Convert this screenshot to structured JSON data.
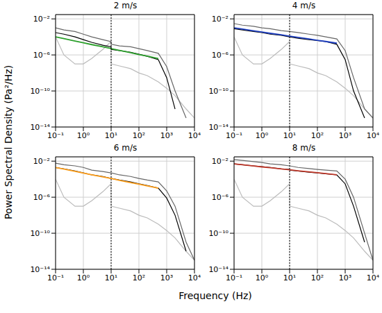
{
  "chart_data": [
    {
      "type": "line",
      "title": "2 m/s",
      "log": true,
      "grid": true,
      "vline": 10,
      "xlim": [
        0.1,
        10000
      ],
      "ylim": [
        1e-14,
        0.03
      ],
      "xticks": [
        {
          "value": 0.1,
          "label": "10⁻¹"
        },
        {
          "value": 1,
          "label": "10⁰"
        },
        {
          "value": 10,
          "label": "10¹"
        },
        {
          "value": 100,
          "label": "10²"
        },
        {
          "value": 1000,
          "label": "10³"
        },
        {
          "value": 10000,
          "label": "10⁴"
        }
      ],
      "yticks": [
        {
          "value": 1e-14,
          "label": "10⁻¹⁴"
        },
        {
          "value": 1e-10,
          "label": "10⁻¹⁰"
        },
        {
          "value": 1e-06,
          "label": "10⁻⁶"
        },
        {
          "value": 0.01,
          "label": "10⁻²"
        }
      ],
      "x": [
        0.1,
        0.2,
        0.5,
        1,
        2,
        5,
        9.9,
        10.1,
        20,
        50,
        100,
        200,
        500,
        1000,
        2000,
        5000,
        10000
      ],
      "series": [
        {
          "color": "#bbbbbb",
          "values": [
            0.0001,
            1e-06,
            1e-07,
            1e-07,
            4e-07,
            4e-06,
            3e-05,
            1e-07,
            6e-08,
            3e-08,
            1e-08,
            5e-09,
            1e-09,
            2e-10,
            3e-11,
            1e-12,
            1e-13
          ]
        },
        {
          "color": "#666666",
          "values": [
            0.001,
            0.0006,
            0.0004,
            0.0002,
            0.0001,
            5e-05,
            3e-05,
            1.5e-05,
            1e-05,
            8e-06,
            5e-06,
            3e-06,
            1.5e-06,
            5e-08,
            1e-10,
            1e-13,
            null
          ]
        },
        {
          "color": "#000000",
          "values": [
            0.0003,
            0.0002,
            0.0001,
            5e-05,
            2.5e-05,
            1.2e-05,
            8e-06,
            4e-06,
            3e-06,
            2e-06,
            1.2e-06,
            7e-07,
            3e-07,
            3e-09,
            1e-12,
            null,
            null
          ]
        },
        {
          "color": "#2ca02c",
          "values": [
            0.0001,
            6.4e-05,
            3.5e-05,
            2.2e-05,
            1.4e-05,
            7.9e-06,
            5.1e-06,
            5e-06,
            3.2e-06,
            1.8e-06,
            1.1e-06,
            7.2e-07,
            4e-07,
            null,
            null,
            null,
            null
          ]
        }
      ]
    },
    {
      "type": "line",
      "title": "4 m/s",
      "log": true,
      "grid": true,
      "vline": 10,
      "xlim": [
        0.1,
        10000
      ],
      "ylim": [
        1e-14,
        0.03
      ],
      "xticks": [
        {
          "value": 0.1,
          "label": "10⁻¹"
        },
        {
          "value": 1,
          "label": "10⁰"
        },
        {
          "value": 10,
          "label": "10¹"
        },
        {
          "value": 100,
          "label": "10²"
        },
        {
          "value": 1000,
          "label": "10³"
        },
        {
          "value": 10000,
          "label": "10⁴"
        }
      ],
      "yticks": [
        {
          "value": 1e-14,
          "label": "10⁻¹⁴"
        },
        {
          "value": 1e-10,
          "label": "10⁻¹⁰"
        },
        {
          "value": 1e-06,
          "label": "10⁻⁶"
        },
        {
          "value": 0.01,
          "label": "10⁻²"
        }
      ],
      "x": [
        0.1,
        0.2,
        0.5,
        1,
        2,
        5,
        9.9,
        10.1,
        20,
        50,
        100,
        200,
        500,
        1000,
        2000,
        5000,
        10000
      ],
      "series": [
        {
          "color": "#bbbbbb",
          "values": [
            0.0001,
            1e-06,
            1e-07,
            1e-07,
            4e-07,
            4e-06,
            3e-05,
            1e-07,
            6e-08,
            3e-08,
            1e-08,
            5e-09,
            1e-09,
            2e-10,
            3e-11,
            1e-12,
            1e-13
          ]
        },
        {
          "color": "#666666",
          "values": [
            0.003,
            0.002,
            0.0015,
            0.001,
            0.0008,
            0.0005,
            0.0004,
            0.0004,
            0.0003,
            0.0002,
            0.00015,
            0.0001,
            6e-05,
            3e-06,
            3e-09,
            1e-12,
            1e-13
          ]
        },
        {
          "color": "#000000",
          "values": [
            0.0008,
            0.0006,
            0.0004,
            0.0003,
            0.0002,
            0.00015,
            0.0001,
            0.0001,
            7e-05,
            5e-05,
            4e-05,
            3e-05,
            1.5e-05,
            3e-07,
            1e-10,
            1e-13,
            null
          ]
        },
        {
          "color": "#1f3fbf",
          "values": [
            0.001,
            0.00073,
            0.00048,
            0.00035,
            0.00025,
            0.00017,
            0.00012,
            0.00012,
            8.8e-05,
            5.8e-05,
            4.2e-05,
            3.1e-05,
            2e-05,
            null,
            null,
            null,
            null
          ]
        }
      ]
    },
    {
      "type": "line",
      "title": "6 m/s",
      "log": true,
      "grid": true,
      "vline": 10,
      "xlim": [
        0.1,
        10000
      ],
      "ylim": [
        1e-14,
        0.03
      ],
      "xticks": [
        {
          "value": 0.1,
          "label": "10⁻¹"
        },
        {
          "value": 1,
          "label": "10⁰"
        },
        {
          "value": 10,
          "label": "10¹"
        },
        {
          "value": 100,
          "label": "10²"
        },
        {
          "value": 1000,
          "label": "10³"
        },
        {
          "value": 10000,
          "label": "10⁴"
        }
      ],
      "yticks": [
        {
          "value": 1e-14,
          "label": "10⁻¹⁴"
        },
        {
          "value": 1e-10,
          "label": "10⁻¹⁰"
        },
        {
          "value": 1e-06,
          "label": "10⁻⁶"
        },
        {
          "value": 0.01,
          "label": "10⁻²"
        }
      ],
      "x": [
        0.1,
        0.2,
        0.5,
        1,
        2,
        5,
        9.9,
        10.1,
        20,
        50,
        100,
        200,
        500,
        1000,
        2000,
        5000,
        10000
      ],
      "series": [
        {
          "color": "#bbbbbb",
          "values": [
            0.0001,
            1e-06,
            1e-07,
            1e-07,
            4e-07,
            4e-06,
            3e-05,
            1e-07,
            6e-08,
            3e-08,
            1e-08,
            5e-09,
            1e-09,
            2e-10,
            3e-11,
            1e-12,
            1e-13
          ]
        },
        {
          "color": "#666666",
          "values": [
            0.006,
            0.004,
            0.003,
            0.002,
            0.001,
            0.0007,
            0.0005,
            0.0005,
            0.0003,
            0.0002,
            0.00012,
            8e-05,
            5e-05,
            5e-06,
            1e-07,
            1e-11,
            1e-13
          ]
        },
        {
          "color": "#000000",
          "values": [
            0.002,
            0.0014,
            0.0008,
            0.0005,
            0.0003,
            0.0002,
            0.00012,
            0.00012,
            8e-05,
            5e-05,
            3e-05,
            2e-05,
            1e-05,
            8e-07,
            1e-08,
            1e-12,
            null
          ]
        },
        {
          "color": "#ff9f1c",
          "values": [
            0.002,
            0.0013,
            0.00073,
            0.00048,
            0.00031,
            0.00018,
            0.00012,
            0.00012,
            7.5e-05,
            4.2e-05,
            2.8e-05,
            1.8e-05,
            1e-05,
            null,
            null,
            null,
            null
          ]
        }
      ]
    },
    {
      "type": "line",
      "title": "8 m/s",
      "log": true,
      "grid": true,
      "vline": 10,
      "xlim": [
        0.1,
        10000
      ],
      "ylim": [
        1e-14,
        0.03
      ],
      "xticks": [
        {
          "value": 0.1,
          "label": "10⁻¹"
        },
        {
          "value": 1,
          "label": "10⁰"
        },
        {
          "value": 10,
          "label": "10¹"
        },
        {
          "value": 100,
          "label": "10²"
        },
        {
          "value": 1000,
          "label": "10³"
        },
        {
          "value": 10000,
          "label": "10⁴"
        }
      ],
      "yticks": [
        {
          "value": 1e-14,
          "label": "10⁻¹⁴"
        },
        {
          "value": 1e-10,
          "label": "10⁻¹⁰"
        },
        {
          "value": 1e-06,
          "label": "10⁻⁶"
        },
        {
          "value": 0.01,
          "label": "10⁻²"
        }
      ],
      "x": [
        0.1,
        0.2,
        0.5,
        1,
        2,
        5,
        9.9,
        10.1,
        20,
        50,
        100,
        200,
        500,
        1000,
        2000,
        5000,
        10000
      ],
      "series": [
        {
          "color": "#bbbbbb",
          "values": [
            0.0001,
            1e-06,
            1e-07,
            1e-07,
            4e-07,
            4e-06,
            3e-05,
            1e-07,
            6e-08,
            3e-08,
            1e-08,
            5e-09,
            1e-09,
            2e-10,
            3e-11,
            1e-12,
            1e-13
          ]
        },
        {
          "color": "#666666",
          "values": [
            0.015,
            0.012,
            0.009,
            0.007,
            0.005,
            0.004,
            0.003,
            0.003,
            0.002,
            0.0015,
            0.0012,
            0.001,
            0.0008,
            0.0001,
            1e-06,
            1e-10,
            1e-13
          ]
        },
        {
          "color": "#000000",
          "values": [
            0.005,
            0.004,
            0.003,
            0.0025,
            0.002,
            0.0014,
            0.0012,
            0.001,
            0.0008,
            0.0006,
            0.0005,
            0.0004,
            0.0003,
            3e-05,
            1e-07,
            1e-11,
            null
          ]
        },
        {
          "color": "#c0392b",
          "values": [
            0.005,
            0.004,
            0.0029,
            0.0023,
            0.0019,
            0.0014,
            0.0011,
            0.0011,
            0.00086,
            0.00064,
            0.00051,
            0.00041,
            0.0003,
            null,
            null,
            null,
            null
          ]
        }
      ]
    }
  ],
  "xlabel": "Frequency (Hz)",
  "ylabel": "Power Spectral Density (Pa²/Hz)"
}
